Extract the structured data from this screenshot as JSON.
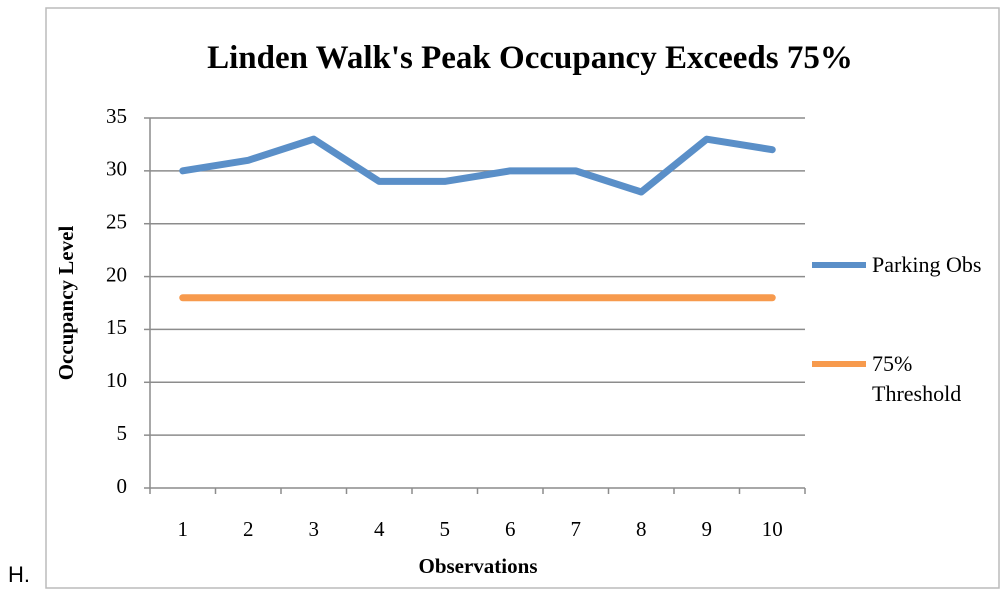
{
  "label": "H.",
  "chart_data": {
    "type": "line",
    "title": "Linden Walk's Peak Occupancy Exceeds 75%",
    "x_label": "Observations",
    "y_label": "Occupancy Level",
    "categories": [
      "1",
      "2",
      "3",
      "4",
      "5",
      "6",
      "7",
      "8",
      "9",
      "10"
    ],
    "series": [
      {
        "name": "Parking Obs",
        "color": "#5a8fc8",
        "values": [
          30,
          31,
          33,
          29,
          29,
          30,
          30,
          28,
          33,
          32
        ]
      },
      {
        "name": "75% Threshold",
        "color": "#f79a4d",
        "values": [
          18,
          18,
          18,
          18,
          18,
          18,
          18,
          18,
          18,
          18
        ]
      }
    ],
    "ylim": [
      0,
      35
    ],
    "yticks": [
      0,
      5,
      10,
      15,
      20,
      25,
      30,
      35
    ],
    "grid": true,
    "legend": "right"
  }
}
